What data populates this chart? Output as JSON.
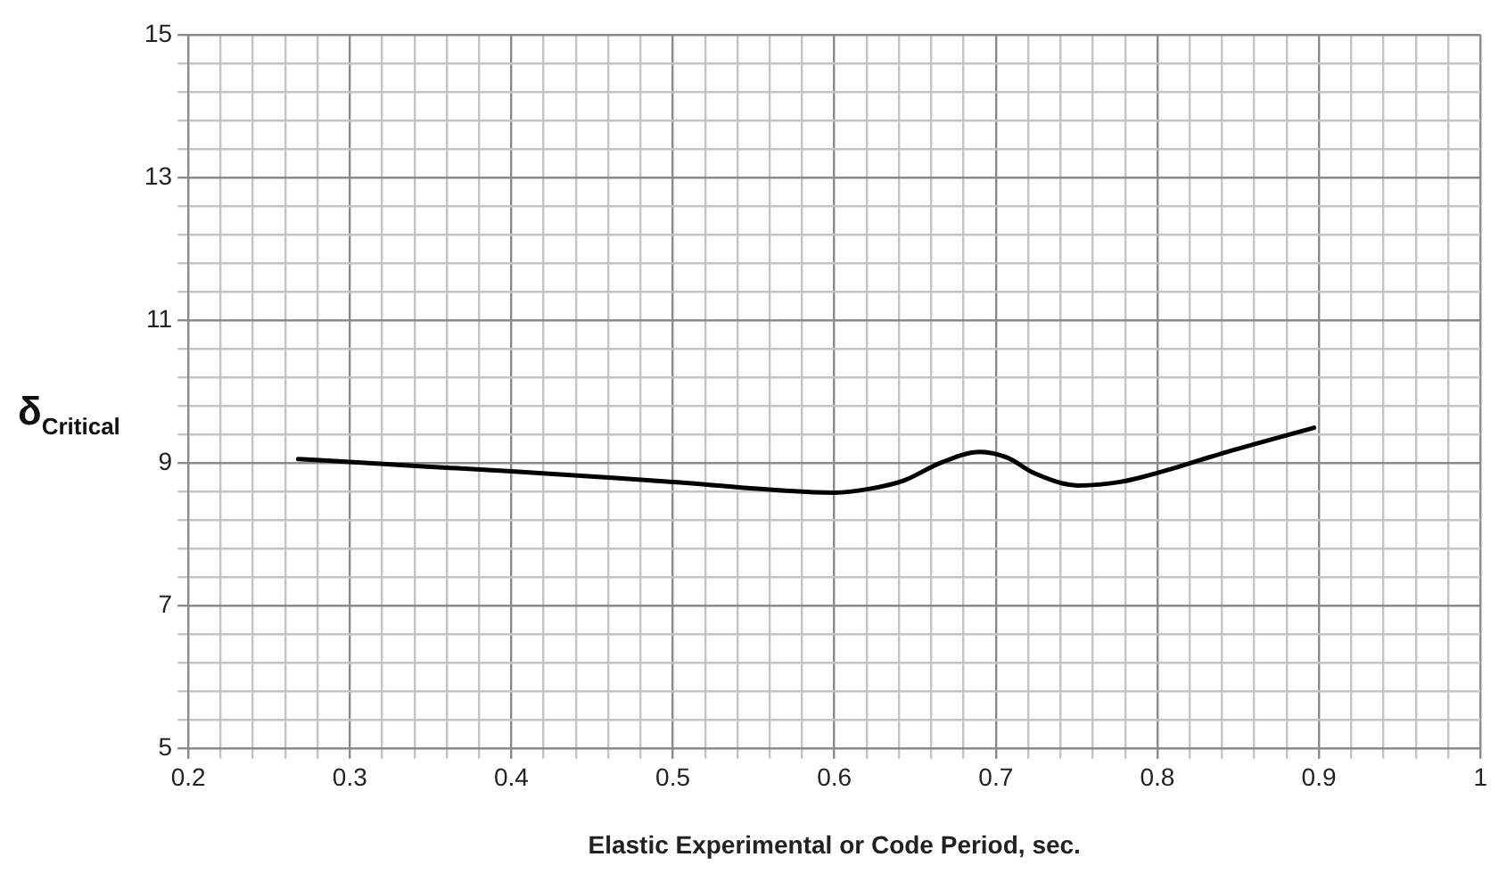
{
  "chart_data": {
    "type": "line",
    "xlabel": "Elastic Experimental or Code Period, sec.",
    "ylabel": "δ$_{Critical}$",
    "x": [
      0.268,
      0.3,
      0.343,
      0.4,
      0.5,
      0.6,
      0.621,
      0.643,
      0.666,
      0.69,
      0.707,
      0.724,
      0.751,
      0.777,
      0.799,
      0.843,
      0.897
    ],
    "series": [
      {
        "color": "#000000",
        "values": [
          9.05,
          9.01,
          8.95,
          8.88,
          8.73,
          8.58,
          8.63,
          8.75,
          9.0,
          9.15,
          9.07,
          8.85,
          8.68,
          8.73,
          8.85,
          9.15,
          9.49
        ]
      }
    ],
    "xlim": [
      0.2,
      1
    ],
    "xticks": [
      0.2,
      {
        "value": 0.22,
        "label": null
      },
      {
        "value": 0.24,
        "label": null
      },
      {
        "value": 0.26,
        "label": null
      },
      {
        "value": 0.28,
        "label": null
      },
      0.3,
      {
        "value": 0.32,
        "label": null
      },
      {
        "value": 0.34,
        "label": null
      },
      {
        "value": 0.36,
        "label": null
      },
      {
        "value": 0.38,
        "label": null
      },
      0.4,
      {
        "value": 0.42,
        "label": null
      },
      {
        "value": 0.44,
        "label": null
      },
      {
        "value": 0.46,
        "label": null
      },
      {
        "value": 0.48,
        "label": null
      },
      0.5,
      {
        "value": 0.52,
        "label": null
      },
      {
        "value": 0.54,
        "label": null
      },
      {
        "value": 0.56,
        "label": null
      },
      {
        "value": 0.58,
        "label": null
      },
      0.6,
      {
        "value": 0.62,
        "label": null
      },
      {
        "value": 0.64,
        "label": null
      },
      {
        "value": 0.66,
        "label": null
      },
      {
        "value": 0.68,
        "label": null
      },
      0.7,
      {
        "value": 0.72,
        "label": null
      },
      {
        "value": 0.74,
        "label": null
      },
      {
        "value": 0.76,
        "label": null
      },
      {
        "value": 0.78,
        "label": null
      },
      0.8,
      {
        "value": 0.82,
        "label": null
      },
      {
        "value": 0.84,
        "label": null
      },
      {
        "value": 0.86,
        "label": null
      },
      {
        "value": 0.88,
        "label": null
      },
      0.9,
      {
        "value": 0.92,
        "label": null
      },
      {
        "value": 0.94,
        "label": null
      },
      {
        "value": 0.96,
        "label": null
      },
      {
        "value": 0.98,
        "label": null
      },
      1
    ],
    "ylim": [
      5,
      15
    ],
    "yticks": [
      5,
      {
        "value": 5.4,
        "label": null
      },
      {
        "value": 5.8,
        "label": null
      },
      {
        "value": 6.2,
        "label": null
      },
      {
        "value": 6.6,
        "label": null
      },
      7,
      {
        "value": 7.4,
        "label": null
      },
      {
        "value": 7.8,
        "label": null
      },
      {
        "value": 8.2,
        "label": null
      },
      {
        "value": 8.6,
        "label": null
      },
      9,
      {
        "value": 9.4,
        "label": null
      },
      {
        "value": 9.8,
        "label": null
      },
      {
        "value": 10.2,
        "label": null
      },
      {
        "value": 10.6,
        "label": null
      },
      11,
      {
        "value": 11.4,
        "label": null
      },
      {
        "value": 11.8,
        "label": null
      },
      {
        "value": 12.2,
        "label": null
      },
      {
        "value": 12.6,
        "label": null
      },
      13,
      {
        "value": 13.4,
        "label": null
      },
      {
        "value": 13.8,
        "label": null
      },
      {
        "value": 14.2,
        "label": null
      },
      {
        "value": 14.6,
        "label": null
      },
      15
    ],
    "grid": true,
    "legend": false,
    "marker": "none",
    "line_style": "solid"
  }
}
